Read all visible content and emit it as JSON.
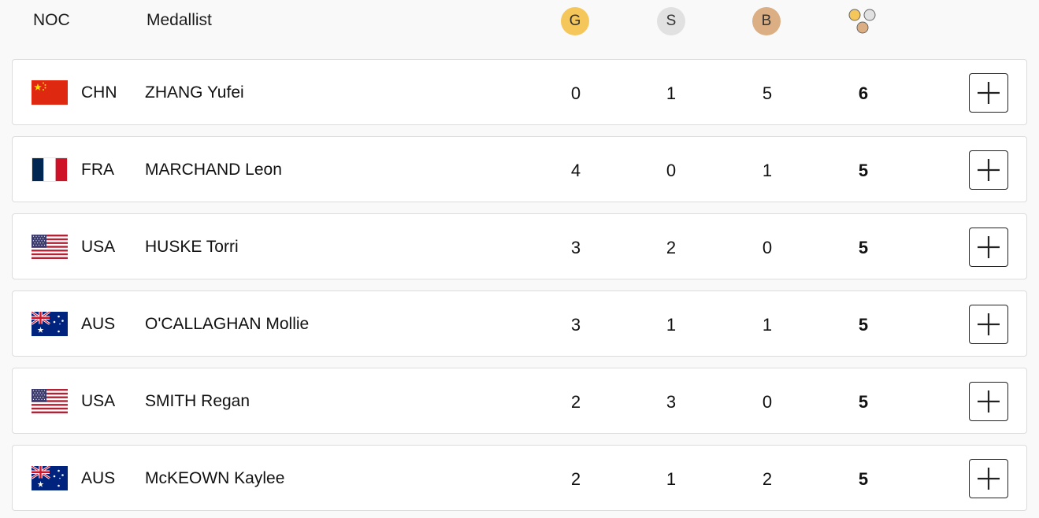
{
  "header": {
    "noc_label": "NOC",
    "medallist_label": "Medallist",
    "gold_label": "G",
    "silver_label": "S",
    "bronze_label": "B",
    "total_icon": "medals-total-icon"
  },
  "colors": {
    "gold": "#f5c75b",
    "silver": "#e1e1e1",
    "bronze": "#dbaf83"
  },
  "rows": [
    {
      "noc": "CHN",
      "flag": "china-flag-icon",
      "name": "ZHANG Yufei",
      "gold": "0",
      "silver": "1",
      "bronze": "5",
      "total": "6"
    },
    {
      "noc": "FRA",
      "flag": "france-flag-icon",
      "name": "MARCHAND Leon",
      "gold": "4",
      "silver": "0",
      "bronze": "1",
      "total": "5"
    },
    {
      "noc": "USA",
      "flag": "usa-flag-icon",
      "name": "HUSKE Torri",
      "gold": "3",
      "silver": "2",
      "bronze": "0",
      "total": "5"
    },
    {
      "noc": "AUS",
      "flag": "australia-flag-icon",
      "name": "O'CALLAGHAN Mollie",
      "gold": "3",
      "silver": "1",
      "bronze": "1",
      "total": "5"
    },
    {
      "noc": "USA",
      "flag": "usa-flag-icon",
      "name": "SMITH Regan",
      "gold": "2",
      "silver": "3",
      "bronze": "0",
      "total": "5"
    },
    {
      "noc": "AUS",
      "flag": "australia-flag-icon",
      "name": "McKEOWN Kaylee",
      "gold": "2",
      "silver": "1",
      "bronze": "2",
      "total": "5"
    }
  ]
}
